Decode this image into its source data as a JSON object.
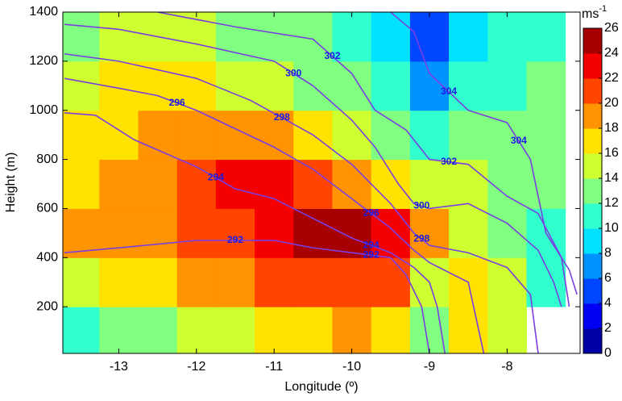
{
  "chart_data": {
    "type": "contour",
    "xlabel": "Longitude (º)",
    "ylabel": "Height (m)",
    "xlim": [
      -13.72,
      -7.06
    ],
    "ylim": [
      10,
      1400
    ],
    "xticks": [
      -13,
      -12,
      -11,
      -10,
      -9,
      -8
    ],
    "yticks": [
      200,
      400,
      600,
      800,
      1000,
      1200,
      1400
    ],
    "colormap": "jet",
    "clim": [
      0,
      26
    ],
    "cticks": [
      0,
      2,
      4,
      6,
      8,
      10,
      12,
      14,
      16,
      18,
      20,
      22,
      24,
      26
    ],
    "colorbar_unit": {
      "base": "ms",
      "exponent": "-1"
    },
    "x": [
      -13.5,
      -13,
      -12.5,
      -12,
      -11.5,
      -11,
      -10.5,
      -10,
      -9.5,
      -9,
      -8.5,
      -8,
      -7.5
    ],
    "y": [
      100,
      300,
      500,
      700,
      900,
      1100,
      1300
    ],
    "z": [
      [
        11,
        12,
        13,
        14,
        15,
        16,
        17,
        18,
        17,
        13,
        16,
        15,
        null
      ],
      [
        14,
        16,
        17,
        18,
        19,
        20,
        21,
        21,
        20,
        15,
        16,
        14,
        11
      ],
      [
        18,
        19,
        19,
        20,
        21,
        22,
        24,
        25,
        23,
        18,
        14,
        13,
        11
      ],
      [
        17,
        18,
        19,
        20,
        22,
        22,
        21,
        19,
        16,
        14,
        14,
        13,
        12
      ],
      [
        16,
        17,
        18,
        19,
        19,
        18,
        16,
        14,
        12,
        11,
        12,
        12,
        12
      ],
      [
        15,
        16,
        16,
        16,
        15,
        14,
        13,
        12,
        10,
        7,
        10,
        11,
        12
      ],
      [
        13,
        14,
        14,
        14,
        13,
        12,
        12,
        11,
        9,
        5,
        9,
        10,
        11
      ]
    ],
    "line_color": "#7a3fe0",
    "label_color": "#1a1ae6",
    "contours": [
      {
        "level": 292,
        "x": [
          -13.7,
          -13,
          -12,
          -11,
          -10.5,
          -10,
          -9.5,
          -9.3,
          -9.1,
          -9
        ],
        "y": [
          420,
          440,
          470,
          470,
          440,
          420,
          400,
          330,
          200,
          10
        ]
      },
      {
        "level": 294,
        "x": [
          -13.7,
          -13.3,
          -12.8,
          -12,
          -11.5,
          -11,
          -10.5,
          -10,
          -9.5,
          -9.2,
          -9,
          -8.9,
          -8.8
        ],
        "y": [
          990,
          980,
          880,
          770,
          680,
          640,
          560,
          480,
          420,
          360,
          300,
          200,
          10
        ]
      },
      {
        "level": 296,
        "x": [
          -13.7,
          -13,
          -12.5,
          -12,
          -11,
          -10.5,
          -10,
          -9.5,
          -9.2,
          -9,
          -8.5,
          -8.3
        ],
        "y": [
          1130,
          1090,
          1060,
          1000,
          850,
          760,
          640,
          520,
          430,
          380,
          300,
          10
        ]
      },
      {
        "level": 298,
        "x": [
          -13.7,
          -13,
          -12,
          -11.3,
          -10.5,
          -10,
          -9.5,
          -9.2,
          -9,
          -8.5,
          -8,
          -7.7,
          -7.6
        ],
        "y": [
          1230,
          1200,
          1130,
          1040,
          900,
          780,
          620,
          500,
          450,
          420,
          360,
          250,
          10
        ]
      },
      {
        "level": 300,
        "x": [
          -13.7,
          -13,
          -12,
          -11,
          -10.5,
          -10,
          -9.7,
          -9.4,
          -9.2,
          -9,
          -8.5,
          -8,
          -7.6,
          -7.4,
          -7.3
        ],
        "y": [
          1350,
          1330,
          1270,
          1200,
          1100,
          960,
          850,
          700,
          620,
          600,
          620,
          540,
          430,
          300,
          200
        ]
      },
      {
        "level": 302,
        "x": [
          -12.5,
          -11.5,
          -10.5,
          -10,
          -9.7,
          -9.3,
          -9,
          -8.5,
          -8,
          -7.6,
          -7.3,
          -7.2
        ],
        "y": [
          1400,
          1340,
          1290,
          1150,
          1000,
          920,
          800,
          780,
          650,
          580,
          400,
          200
        ]
      },
      {
        "level": 304,
        "x": [
          -9.5,
          -9.2,
          -9,
          -8.5,
          -8,
          -7.7,
          -7.5,
          -7.2,
          -7.1
        ],
        "y": [
          1400,
          1320,
          1150,
          1000,
          950,
          800,
          500,
          350,
          250
        ]
      }
    ]
  }
}
